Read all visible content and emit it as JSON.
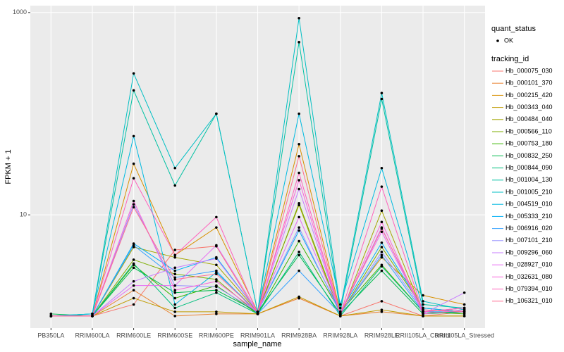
{
  "chart_data": {
    "type": "line",
    "log_y": true,
    "grid": true,
    "x_label": "sample_name",
    "y_label": "FPKM + 1",
    "point_legend_title": "quant_status",
    "point_legend_label": "OK",
    "point_color": "#000000",
    "legend_title": "tracking_id",
    "legend_position": "right",
    "categories": [
      "PB350LA",
      "RRIM600LA",
      "RRIM600LE",
      "RRIM600SE",
      "RRIM600PE",
      "RRIM901LA",
      "RRIM928BA",
      "RRIM928LA",
      "RRIM928LE",
      "RRII105LA_Control",
      "RRII105LA_Stressed"
    ],
    "ylim": [
      0.76,
      1170
    ],
    "yticks": [
      10,
      1000
    ],
    "series": [
      {
        "name": "Hb_000075_030",
        "color": "#F8766D",
        "values": [
          1,
          1,
          1.3,
          4.5,
          4.9,
          1.05,
          1.5,
          1,
          1.4,
          1,
          1.1
        ]
      },
      {
        "name": "Hb_000101_370",
        "color": "#EA8331",
        "values": [
          1,
          1,
          1.8,
          1,
          1.05,
          1.05,
          1.5,
          1,
          1.1,
          1,
          1
        ]
      },
      {
        "name": "Hb_000215_420",
        "color": "#D89000",
        "values": [
          1,
          1,
          32,
          4,
          7.5,
          1.1,
          50,
          1.1,
          3.8,
          1.6,
          1.3
        ]
      },
      {
        "name": "Hb_000343_040",
        "color": "#C09B00",
        "values": [
          1,
          1,
          1.5,
          1.1,
          1.1,
          1.05,
          1.55,
          1,
          1.15,
          1,
          1
        ]
      },
      {
        "name": "Hb_000484_040",
        "color": "#A3A500",
        "values": [
          1,
          1,
          4.8,
          3.8,
          3.2,
          1.1,
          12.5,
          1,
          11,
          1.1,
          1.2
        ]
      },
      {
        "name": "Hb_000566_110",
        "color": "#7CAE00",
        "values": [
          1,
          1,
          3.6,
          2.6,
          2.3,
          1.05,
          13,
          1.05,
          4.8,
          1.2,
          1.1
        ]
      },
      {
        "name": "Hb_000753_180",
        "color": "#39B600",
        "values": [
          1,
          1,
          3.2,
          1.5,
          2.0,
          1.05,
          5.5,
          1.1,
          3.2,
          1.1,
          1.05
        ]
      },
      {
        "name": "Hb_000832_250",
        "color": "#00BB4E",
        "values": [
          1.05,
          1,
          3.0,
          1.7,
          1.8,
          1.1,
          4.0,
          1.05,
          2.8,
          1.05,
          1.1
        ]
      },
      {
        "name": "Hb_000844_090",
        "color": "#00BF7D",
        "values": [
          1,
          1,
          3.3,
          1.2,
          1.7,
          1.05,
          4.3,
          1,
          3.1,
          1.1,
          1.1
        ]
      },
      {
        "name": "Hb_001004_130",
        "color": "#00C1A3",
        "values": [
          1,
          1.05,
          170,
          19.5,
          100,
          1.1,
          510,
          1.1,
          140,
          1.3,
          1.2
        ]
      },
      {
        "name": "Hb_001005_210",
        "color": "#00BFC4",
        "values": [
          1,
          1.05,
          250,
          29,
          100,
          1.1,
          880,
          1.2,
          160,
          1.4,
          1.15
        ]
      },
      {
        "name": "Hb_004519_010",
        "color": "#00BAE0",
        "values": [
          1,
          1.05,
          60,
          1.3,
          2.7,
          1.1,
          100,
          1.3,
          29,
          1.2,
          1.1
        ]
      },
      {
        "name": "Hb_005333_210",
        "color": "#00B0F6",
        "values": [
          1,
          1,
          5.2,
          2.8,
          3.8,
          1.1,
          7.0,
          1.1,
          5.3,
          1.2,
          1.1
        ]
      },
      {
        "name": "Hb_006916_020",
        "color": "#35A2FF",
        "values": [
          1,
          1,
          5.0,
          2.4,
          2.8,
          1.05,
          2.8,
          1.05,
          4.0,
          1.1,
          1.1
        ]
      },
      {
        "name": "Hb_007101_210",
        "color": "#9590FF",
        "values": [
          1,
          1,
          12.7,
          2.0,
          1.95,
          1.1,
          7.5,
          1.05,
          4.3,
          1.15,
          1.1
        ]
      },
      {
        "name": "Hb_009296_060",
        "color": "#C77CFF",
        "values": [
          1,
          1,
          2.2,
          3.0,
          3.7,
          1.1,
          18,
          1.05,
          7.5,
          1.05,
          1.7
        ]
      },
      {
        "name": "Hb_028927_010",
        "color": "#E76BF3",
        "values": [
          1,
          1,
          2.0,
          2.0,
          5.0,
          1.1,
          9.5,
          1.1,
          6.8,
          1.1,
          1.2
        ]
      },
      {
        "name": "Hb_032631_080",
        "color": "#FA62DB",
        "values": [
          1,
          1,
          13.7,
          1.8,
          2.2,
          1.1,
          22,
          1.05,
          8.5,
          1.05,
          1.15
        ]
      },
      {
        "name": "Hb_079394_010",
        "color": "#FF62BC",
        "values": [
          1,
          1,
          23,
          4.0,
          9.5,
          1.05,
          26,
          1.05,
          19,
          1.1,
          1.2
        ]
      },
      {
        "name": "Hb_106321_010",
        "color": "#FF6C91",
        "values": [
          1,
          1,
          11.9,
          2.3,
          2.6,
          1.1,
          38,
          1.05,
          7.3,
          1.15,
          1.1
        ]
      }
    ]
  }
}
